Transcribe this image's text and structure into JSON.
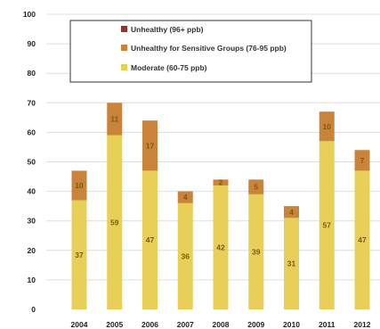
{
  "chart_data": {
    "type": "bar",
    "stacked": true,
    "categories": [
      "2004",
      "2005",
      "2006",
      "2007",
      "2008",
      "2009",
      "2010",
      "2011",
      "2012"
    ],
    "series": [
      {
        "name": "Moderate (60-75 ppb)",
        "color": "#e8cf57",
        "values": [
          37,
          59,
          47,
          36,
          42,
          39,
          31,
          57,
          47
        ],
        "labels": [
          "37",
          "59",
          "47",
          "36",
          "42",
          "39",
          "31",
          "57",
          "47"
        ]
      },
      {
        "name": "Unhealthy for Sensitive Groups (76-95 ppb)",
        "color": "#c9843a",
        "values": [
          10,
          11,
          17,
          4,
          2,
          5,
          4,
          10,
          7
        ],
        "labels": [
          "10",
          "11",
          "17",
          "4",
          "2",
          "5",
          "4",
          "10",
          "7"
        ]
      },
      {
        "name": "Unhealthy (96+ ppb)",
        "color": "#9a2f2f",
        "values": [
          0,
          0,
          0,
          0,
          0,
          0,
          0,
          0,
          0
        ]
      }
    ],
    "legend_order": [
      "Unhealthy (96+ ppb)",
      "Unhealthy for Sensitive Groups (76-95 ppb)",
      "Moderate (60-75 ppb)"
    ],
    "y_ticks": [
      "0",
      "10",
      "20",
      "30",
      "40",
      "50",
      "60",
      "70",
      "80",
      "90",
      "100"
    ],
    "ylim": [
      0,
      100
    ],
    "grid": true,
    "legend_position": "top"
  }
}
